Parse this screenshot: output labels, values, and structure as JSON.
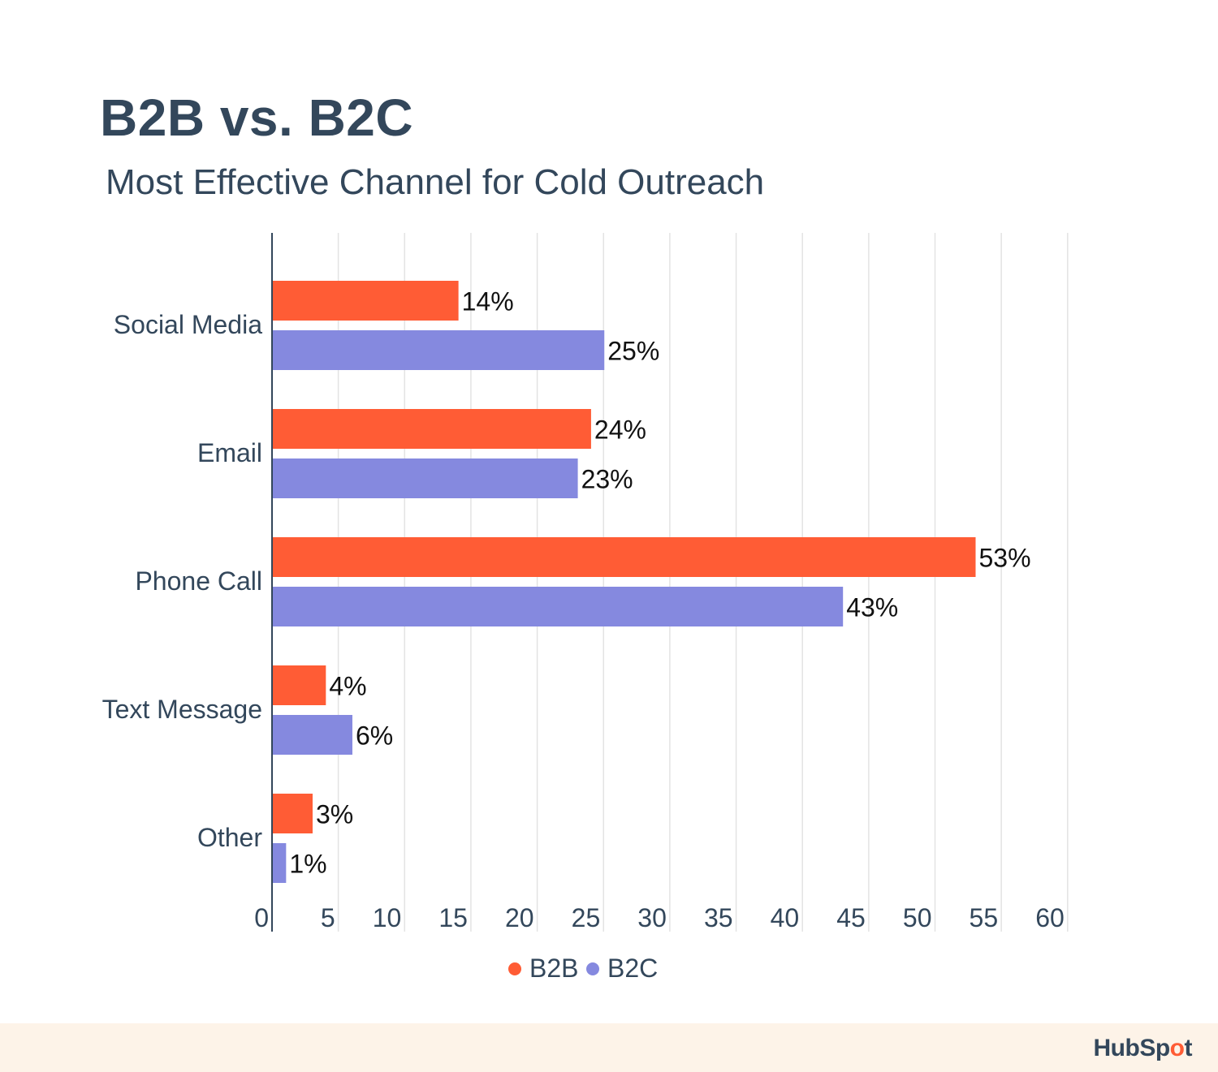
{
  "header": {
    "title": "B2B vs. B2C",
    "subtitle": "Most Effective Channel for Cold Outreach"
  },
  "chart_data": {
    "type": "bar",
    "orientation": "horizontal",
    "title": "B2B vs. B2C",
    "subtitle": "Most Effective Channel for Cold Outreach",
    "categories": [
      "Social Media",
      "Email",
      "Phone Call",
      "Text Message",
      "Other"
    ],
    "series": [
      {
        "name": "B2B",
        "values": [
          14,
          24,
          53,
          4,
          3
        ],
        "labels": [
          "14%",
          "24%",
          "53%",
          "4%",
          "3%"
        ],
        "color": "#ff5c35"
      },
      {
        "name": "B2C",
        "values": [
          25,
          23,
          43,
          6,
          1
        ],
        "labels": [
          "25%",
          "23%",
          "43%",
          "6%",
          "1%"
        ],
        "color": "#8589df"
      }
    ],
    "xlim": [
      0,
      60
    ],
    "xticks": [
      0,
      5,
      10,
      15,
      20,
      25,
      30,
      35,
      40,
      45,
      50,
      55,
      60
    ],
    "grid": "vertical",
    "legend_position": "bottom-center"
  },
  "brand": {
    "name": "HubSpot"
  },
  "colors": {
    "text": "#33475b",
    "grid": "#e3e3e3",
    "axis": "#33475b",
    "footer": "#fdf3e8"
  }
}
